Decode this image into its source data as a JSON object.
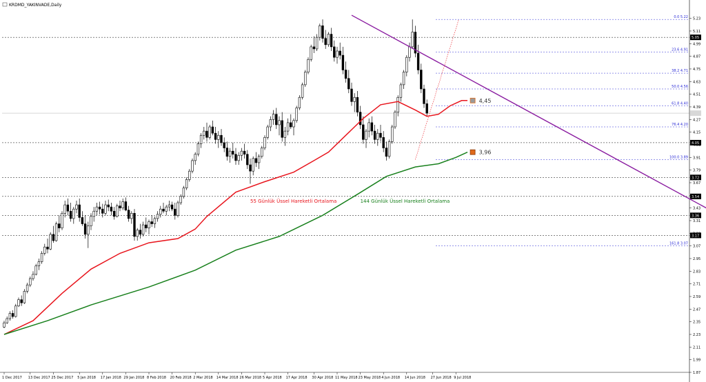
{
  "window": {
    "title": "KRDMD_YAKINVADE,Daily"
  },
  "colors": {
    "ema55": "#e8141c",
    "ema144": "#18801c",
    "trendline": "#8a1ca0",
    "fib": "#2a2ad6",
    "grid": "#000000",
    "price_line": "#c8c8c8",
    "candle": "#000000",
    "up_fill": "#ffffff",
    "down_fill": "#000000",
    "marker_orange": "#e06a1a",
    "marker_gray": "#9a9a9a"
  },
  "chart_data": {
    "type": "candlestick",
    "x_axis_labels": [
      {
        "label": "1 Dec 2017",
        "bar": 0
      },
      {
        "label": "13 Dec 2017",
        "bar": 9
      },
      {
        "label": "25 Dec 2017",
        "bar": 17
      },
      {
        "label": "5 Jan 2018",
        "bar": 26
      },
      {
        "label": "17 Jan 2018",
        "bar": 34
      },
      {
        "label": "29 Jan 2018",
        "bar": 42
      },
      {
        "label": "8 Feb 2018",
        "bar": 50
      },
      {
        "label": "20 Feb 2018",
        "bar": 58
      },
      {
        "label": "2 Mar 2018",
        "bar": 66
      },
      {
        "label": "14 Mar 2018",
        "bar": 74
      },
      {
        "label": "26 Mar 2018",
        "bar": 82
      },
      {
        "label": "5 Apr 2018",
        "bar": 90
      },
      {
        "label": "17 Apr 2018",
        "bar": 98
      },
      {
        "label": "30 Apr 2018",
        "bar": 107
      },
      {
        "label": "11 May 2018",
        "bar": 115
      },
      {
        "label": "23 May 2018",
        "bar": 123
      },
      {
        "label": "4 Jun 2018",
        "bar": 131
      },
      {
        "label": "14 Jun 2018",
        "bar": 139
      },
      {
        "label": "27 Jun 2018",
        "bar": 148
      },
      {
        "label": "9 Jul 2018",
        "bar": 156
      }
    ],
    "y_axis": {
      "min": 1.87,
      "max": 5.28,
      "ticks": [
        "5.23",
        "5.11",
        "4.99",
        "4.87",
        "4.75",
        "4.63",
        "4.51",
        "4.39",
        "4.27",
        "4.15",
        "4.03",
        "3.91",
        "3.79",
        "3.67",
        "3.55",
        "3.43",
        "3.31",
        "3.19",
        "3.07",
        "2.95",
        "2.83",
        "2.71",
        "2.59",
        "2.47",
        "2.35",
        "2.23",
        "2.11",
        "1.99",
        "1.87"
      ],
      "highlighted_labels": [
        {
          "label": "5.05",
          "price": 5.05
        },
        {
          "label": "4.05",
          "price": 4.05
        },
        {
          "label": "3.72",
          "price": 3.72
        },
        {
          "label": "3.54",
          "price": 3.54
        },
        {
          "label": "3.36",
          "price": 3.36
        },
        {
          "label": "3.17",
          "price": 3.17
        }
      ],
      "horizontal_levels": [
        5.05,
        4.05,
        3.72,
        3.54,
        3.36,
        3.17
      ]
    },
    "fibonacci": {
      "levels": [
        {
          "label": "0.0 5.22",
          "price": 5.22
        },
        {
          "label": "23.6 4.91",
          "price": 4.91
        },
        {
          "label": "38.2 4.71",
          "price": 4.71
        },
        {
          "label": "50.0 4.56",
          "price": 4.56
        },
        {
          "label": "61.8 4.40",
          "price": 4.4
        },
        {
          "label": "76.4 4.20",
          "price": 4.2
        },
        {
          "label": "100.0 3.89",
          "price": 3.89
        },
        {
          "label": "161.8 3.07",
          "price": 3.07
        }
      ]
    },
    "series": [
      {
        "name": "55 Günlük Üssel Hareketli Ortalama",
        "color": "#e8141c",
        "points": [
          [
            0,
            2.23
          ],
          [
            10,
            2.36
          ],
          [
            20,
            2.62
          ],
          [
            30,
            2.85
          ],
          [
            40,
            3.0
          ],
          [
            50,
            3.1
          ],
          [
            60,
            3.14
          ],
          [
            66,
            3.23
          ],
          [
            70,
            3.35
          ],
          [
            80,
            3.58
          ],
          [
            90,
            3.68
          ],
          [
            100,
            3.77
          ],
          [
            107,
            3.88
          ],
          [
            112,
            3.96
          ],
          [
            118,
            4.12
          ],
          [
            124,
            4.28
          ],
          [
            130,
            4.41
          ],
          [
            136,
            4.44
          ],
          [
            142,
            4.36
          ],
          [
            146,
            4.3
          ],
          [
            150,
            4.32
          ],
          [
            154,
            4.4
          ],
          [
            158,
            4.45
          ],
          [
            160,
            4.45
          ]
        ]
      },
      {
        "name": "144 Günlük Üssel Hareketli Ortalama",
        "color": "#18801c",
        "points": [
          [
            0,
            2.23
          ],
          [
            15,
            2.36
          ],
          [
            30,
            2.51
          ],
          [
            50,
            2.68
          ],
          [
            66,
            2.84
          ],
          [
            80,
            3.03
          ],
          [
            95,
            3.16
          ],
          [
            110,
            3.36
          ],
          [
            122,
            3.56
          ],
          [
            132,
            3.73
          ],
          [
            142,
            3.82
          ],
          [
            150,
            3.85
          ],
          [
            156,
            3.91
          ],
          [
            160,
            3.96
          ]
        ]
      }
    ],
    "annotations": [
      {
        "text": "55 Günlük Üssel Hareketli Ortalama",
        "bar": 85,
        "price": 3.48,
        "color": "#e8141c"
      },
      {
        "text": "144 Günlük Üssel Hareketli Ortalama",
        "bar": 123,
        "price": 3.48,
        "color": "#18801c"
      },
      {
        "text": "4,45",
        "bar": 163,
        "price": 4.45
      },
      {
        "text": "3,96",
        "bar": 163,
        "price": 3.96
      }
    ],
    "trendline": {
      "from": {
        "bar": 120,
        "price": 5.26
      },
      "to": {
        "bar": 290,
        "price": 2.72
      }
    },
    "current_price": 4.33,
    "ohlc": [
      [
        2.3,
        2.36,
        2.29,
        2.34
      ],
      [
        2.34,
        2.4,
        2.33,
        2.38
      ],
      [
        2.38,
        2.45,
        2.36,
        2.43
      ],
      [
        2.43,
        2.46,
        2.38,
        2.4
      ],
      [
        2.4,
        2.52,
        2.39,
        2.5
      ],
      [
        2.5,
        2.58,
        2.49,
        2.56
      ],
      [
        2.56,
        2.6,
        2.5,
        2.53
      ],
      [
        2.53,
        2.66,
        2.52,
        2.64
      ],
      [
        2.64,
        2.72,
        2.62,
        2.7
      ],
      [
        2.7,
        2.78,
        2.68,
        2.76
      ],
      [
        2.76,
        2.83,
        2.74,
        2.8
      ],
      [
        2.8,
        2.9,
        2.79,
        2.88
      ],
      [
        2.88,
        2.95,
        2.84,
        2.92
      ],
      [
        2.92,
        3.02,
        2.9,
        3.0
      ],
      [
        3.0,
        3.09,
        2.98,
        3.06
      ],
      [
        3.06,
        3.14,
        3.0,
        3.04
      ],
      [
        3.04,
        3.2,
        3.03,
        3.18
      ],
      [
        3.18,
        3.26,
        3.1,
        3.12
      ],
      [
        3.12,
        3.3,
        3.11,
        3.28
      ],
      [
        3.28,
        3.36,
        3.2,
        3.24
      ],
      [
        3.24,
        3.4,
        3.22,
        3.38
      ],
      [
        3.38,
        3.5,
        3.34,
        3.46
      ],
      [
        3.46,
        3.52,
        3.36,
        3.4
      ],
      [
        3.4,
        3.48,
        3.3,
        3.33
      ],
      [
        3.33,
        3.44,
        3.28,
        3.42
      ],
      [
        3.42,
        3.5,
        3.38,
        3.46
      ],
      [
        3.46,
        3.52,
        3.3,
        3.34
      ],
      [
        3.34,
        3.4,
        3.26,
        3.28
      ],
      [
        3.28,
        3.36,
        3.14,
        3.18
      ],
      [
        3.18,
        3.3,
        3.05,
        3.26
      ],
      [
        3.26,
        3.38,
        3.22,
        3.35
      ],
      [
        3.35,
        3.44,
        3.3,
        3.4
      ],
      [
        3.4,
        3.48,
        3.36,
        3.44
      ],
      [
        3.44,
        3.49,
        3.37,
        3.42
      ],
      [
        3.42,
        3.47,
        3.34,
        3.38
      ],
      [
        3.38,
        3.5,
        3.36,
        3.46
      ],
      [
        3.46,
        3.51,
        3.4,
        3.44
      ],
      [
        3.44,
        3.48,
        3.36,
        3.4
      ],
      [
        3.4,
        3.44,
        3.32,
        3.35
      ],
      [
        3.35,
        3.47,
        3.34,
        3.45
      ],
      [
        3.45,
        3.5,
        3.4,
        3.43
      ],
      [
        3.43,
        3.52,
        3.41,
        3.49
      ],
      [
        3.49,
        3.53,
        3.4,
        3.41
      ],
      [
        3.41,
        3.45,
        3.3,
        3.33
      ],
      [
        3.33,
        3.4,
        3.28,
        3.38
      ],
      [
        3.38,
        3.42,
        3.12,
        3.16
      ],
      [
        3.16,
        3.24,
        3.12,
        3.22
      ],
      [
        3.22,
        3.28,
        3.14,
        3.18
      ],
      [
        3.18,
        3.3,
        3.16,
        3.27
      ],
      [
        3.27,
        3.34,
        3.2,
        3.24
      ],
      [
        3.24,
        3.32,
        3.18,
        3.3
      ],
      [
        3.3,
        3.36,
        3.25,
        3.28
      ],
      [
        3.28,
        3.35,
        3.24,
        3.33
      ],
      [
        3.33,
        3.4,
        3.3,
        3.37
      ],
      [
        3.37,
        3.45,
        3.34,
        3.42
      ],
      [
        3.42,
        3.48,
        3.38,
        3.4
      ],
      [
        3.4,
        3.46,
        3.36,
        3.44
      ],
      [
        3.44,
        3.5,
        3.4,
        3.46
      ],
      [
        3.46,
        3.49,
        3.4,
        3.42
      ],
      [
        3.42,
        3.48,
        3.32,
        3.36
      ],
      [
        3.36,
        3.5,
        3.34,
        3.48
      ],
      [
        3.48,
        3.56,
        3.46,
        3.54
      ],
      [
        3.54,
        3.64,
        3.52,
        3.62
      ],
      [
        3.62,
        3.72,
        3.6,
        3.7
      ],
      [
        3.7,
        3.8,
        3.68,
        3.78
      ],
      [
        3.78,
        3.9,
        3.76,
        3.88
      ],
      [
        3.88,
        3.96,
        3.84,
        3.94
      ],
      [
        3.94,
        4.06,
        3.92,
        4.04
      ],
      [
        4.04,
        4.14,
        4.0,
        4.12
      ],
      [
        4.12,
        4.2,
        4.08,
        4.16
      ],
      [
        4.16,
        4.24,
        4.06,
        4.1
      ],
      [
        4.1,
        4.22,
        4.08,
        4.2
      ],
      [
        4.2,
        4.26,
        4.12,
        4.14
      ],
      [
        4.14,
        4.2,
        4.04,
        4.08
      ],
      [
        4.08,
        4.16,
        4.0,
        4.12
      ],
      [
        4.12,
        4.18,
        4.02,
        4.05
      ],
      [
        4.05,
        4.1,
        3.96,
        4.0
      ],
      [
        4.0,
        4.06,
        3.88,
        3.92
      ],
      [
        3.92,
        4.0,
        3.86,
        3.97
      ],
      [
        3.97,
        4.05,
        3.9,
        3.94
      ],
      [
        3.94,
        4.0,
        3.84,
        3.88
      ],
      [
        3.88,
        3.96,
        3.84,
        3.93
      ],
      [
        3.93,
        4.0,
        3.88,
        3.97
      ],
      [
        3.97,
        4.04,
        3.9,
        3.94
      ],
      [
        3.94,
        3.98,
        3.8,
        3.84
      ],
      [
        3.84,
        3.9,
        3.66,
        3.78
      ],
      [
        3.78,
        3.92,
        3.74,
        3.9
      ],
      [
        3.9,
        3.96,
        3.82,
        3.86
      ],
      [
        3.86,
        3.94,
        3.8,
        3.92
      ],
      [
        3.92,
        4.02,
        3.9,
        4.0
      ],
      [
        4.0,
        4.12,
        3.98,
        4.1
      ],
      [
        4.1,
        4.22,
        4.08,
        4.2
      ],
      [
        4.2,
        4.3,
        4.16,
        4.27
      ],
      [
        4.27,
        4.36,
        4.22,
        4.32
      ],
      [
        4.32,
        4.38,
        4.18,
        4.22
      ],
      [
        4.22,
        4.3,
        4.12,
        4.26
      ],
      [
        4.26,
        4.34,
        4.06,
        4.1
      ],
      [
        4.1,
        4.2,
        4.02,
        4.16
      ],
      [
        4.16,
        4.28,
        4.12,
        4.24
      ],
      [
        4.24,
        4.32,
        4.18,
        4.2
      ],
      [
        4.2,
        4.28,
        4.12,
        4.26
      ],
      [
        4.26,
        4.4,
        4.24,
        4.38
      ],
      [
        4.38,
        4.5,
        4.36,
        4.48
      ],
      [
        4.48,
        4.62,
        4.46,
        4.6
      ],
      [
        4.6,
        4.74,
        4.58,
        4.72
      ],
      [
        4.72,
        4.86,
        4.7,
        4.84
      ],
      [
        4.84,
        4.98,
        4.82,
        4.96
      ],
      [
        4.96,
        5.06,
        4.9,
        4.94
      ],
      [
        4.94,
        5.08,
        4.92,
        5.05
      ],
      [
        5.05,
        5.18,
        5.02,
        5.16
      ],
      [
        5.16,
        5.22,
        5.0,
        5.04
      ],
      [
        5.04,
        5.12,
        4.94,
        4.98
      ],
      [
        4.98,
        5.1,
        4.96,
        5.08
      ],
      [
        5.08,
        5.14,
        4.92,
        4.96
      ],
      [
        4.96,
        5.02,
        4.82,
        4.86
      ],
      [
        4.86,
        4.96,
        4.8,
        4.92
      ],
      [
        4.92,
        5.0,
        4.84,
        4.88
      ],
      [
        4.88,
        4.96,
        4.7,
        4.74
      ],
      [
        4.74,
        4.82,
        4.62,
        4.66
      ],
      [
        4.66,
        4.74,
        4.52,
        4.56
      ],
      [
        4.56,
        4.62,
        4.4,
        4.44
      ],
      [
        4.44,
        4.52,
        4.34,
        4.48
      ],
      [
        4.48,
        4.54,
        4.3,
        4.34
      ],
      [
        4.34,
        4.4,
        4.18,
        4.22
      ],
      [
        4.22,
        4.3,
        4.04,
        4.08
      ],
      [
        4.08,
        4.18,
        4.0,
        4.16
      ],
      [
        4.16,
        4.28,
        4.1,
        4.24
      ],
      [
        4.24,
        4.3,
        4.12,
        4.16
      ],
      [
        4.16,
        4.22,
        4.04,
        4.08
      ],
      [
        4.08,
        4.18,
        4.02,
        4.14
      ],
      [
        4.14,
        4.22,
        4.06,
        4.1
      ],
      [
        4.1,
        4.16,
        3.96,
        4.0
      ],
      [
        4.0,
        4.06,
        3.88,
        3.92
      ],
      [
        3.92,
        4.08,
        3.9,
        4.06
      ],
      [
        4.06,
        4.22,
        4.04,
        4.2
      ],
      [
        4.2,
        4.36,
        4.18,
        4.34
      ],
      [
        4.34,
        4.5,
        4.3,
        4.48
      ],
      [
        4.48,
        4.62,
        4.44,
        4.6
      ],
      [
        4.6,
        4.74,
        4.56,
        4.72
      ],
      [
        4.72,
        4.88,
        4.68,
        4.86
      ],
      [
        4.86,
        5.0,
        4.82,
        4.96
      ],
      [
        4.96,
        5.22,
        4.94,
        5.1
      ],
      [
        5.1,
        5.16,
        4.86,
        4.9
      ],
      [
        4.9,
        4.98,
        4.7,
        4.74
      ],
      [
        4.74,
        4.8,
        4.52,
        4.56
      ],
      [
        4.56,
        4.6,
        4.38,
        4.42
      ],
      [
        4.42,
        4.46,
        4.3,
        4.33
      ]
    ]
  }
}
